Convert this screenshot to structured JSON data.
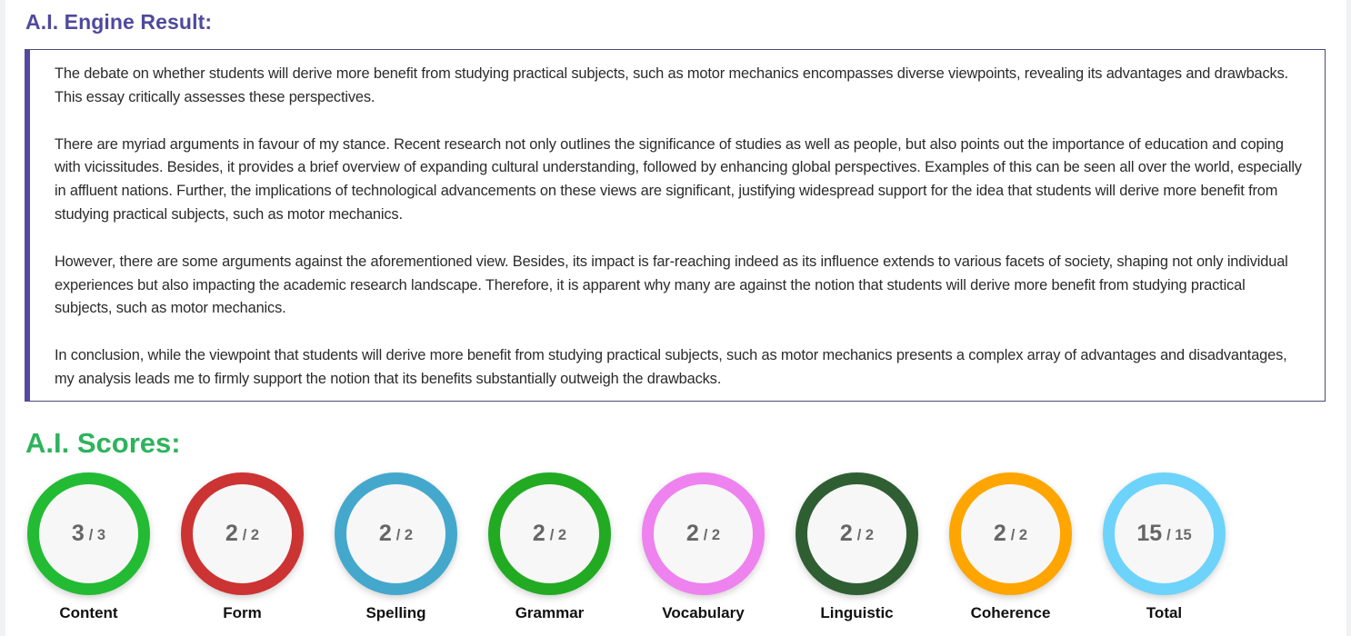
{
  "engine_result": {
    "title": "A.I. Engine Result:",
    "paragraphs": [
      "The debate on whether students will derive more benefit from studying practical subjects, such as motor mechanics encompasses diverse viewpoints, revealing its advantages and drawbacks. This essay critically assesses these perspectives.",
      "There are myriad arguments in favour of my stance. Recent research not only outlines the significance of studies as well as people, but also points out the importance of education and coping with vicissitudes. Besides, it provides a brief overview of expanding cultural understanding, followed by enhancing global perspectives. Examples of this can be seen all over the world, especially in affluent nations. Further, the implications of technological advancements on these views are significant, justifying widespread support for the idea that students will derive more benefit from studying practical subjects, such as motor mechanics.",
      "However, there are some arguments against the aforementioned view. Besides, its impact is far-reaching indeed as its influence extends to various facets of society, shaping not only individual experiences but also impacting the academic research landscape. Therefore, it is apparent why many are against the notion that students will derive more benefit from studying practical subjects, such as motor mechanics.",
      "In conclusion, while the viewpoint that students will derive more benefit from studying practical subjects, such as motor mechanics presents a complex array of advantages and disadvantages, my analysis leads me to firmly support the notion that its benefits substantially outweigh the drawbacks."
    ],
    "accent_color": "#514aa0"
  },
  "scores": {
    "title": "A.I. Scores:",
    "title_color": "#2eb35d",
    "items": [
      {
        "label": "Content",
        "value": "3",
        "max": "/ 3",
        "color": "#22bb33"
      },
      {
        "label": "Form",
        "value": "2",
        "max": "/ 2",
        "color": "#cc3333"
      },
      {
        "label": "Spelling",
        "value": "2",
        "max": "/ 2",
        "color": "#44a8cc"
      },
      {
        "label": "Grammar",
        "value": "2",
        "max": "/ 2",
        "color": "#22aa22"
      },
      {
        "label": "Vocabulary",
        "value": "2",
        "max": "/ 2",
        "color": "#ee82ee"
      },
      {
        "label": "Linguistic",
        "value": "2",
        "max": "/ 2",
        "color": "#2f5e33"
      },
      {
        "label": "Coherence",
        "value": "2",
        "max": "/ 2",
        "color": "#ffa500"
      },
      {
        "label": "Total",
        "value": "15",
        "max": "/ 15",
        "color": "#6dd3fa"
      }
    ]
  }
}
